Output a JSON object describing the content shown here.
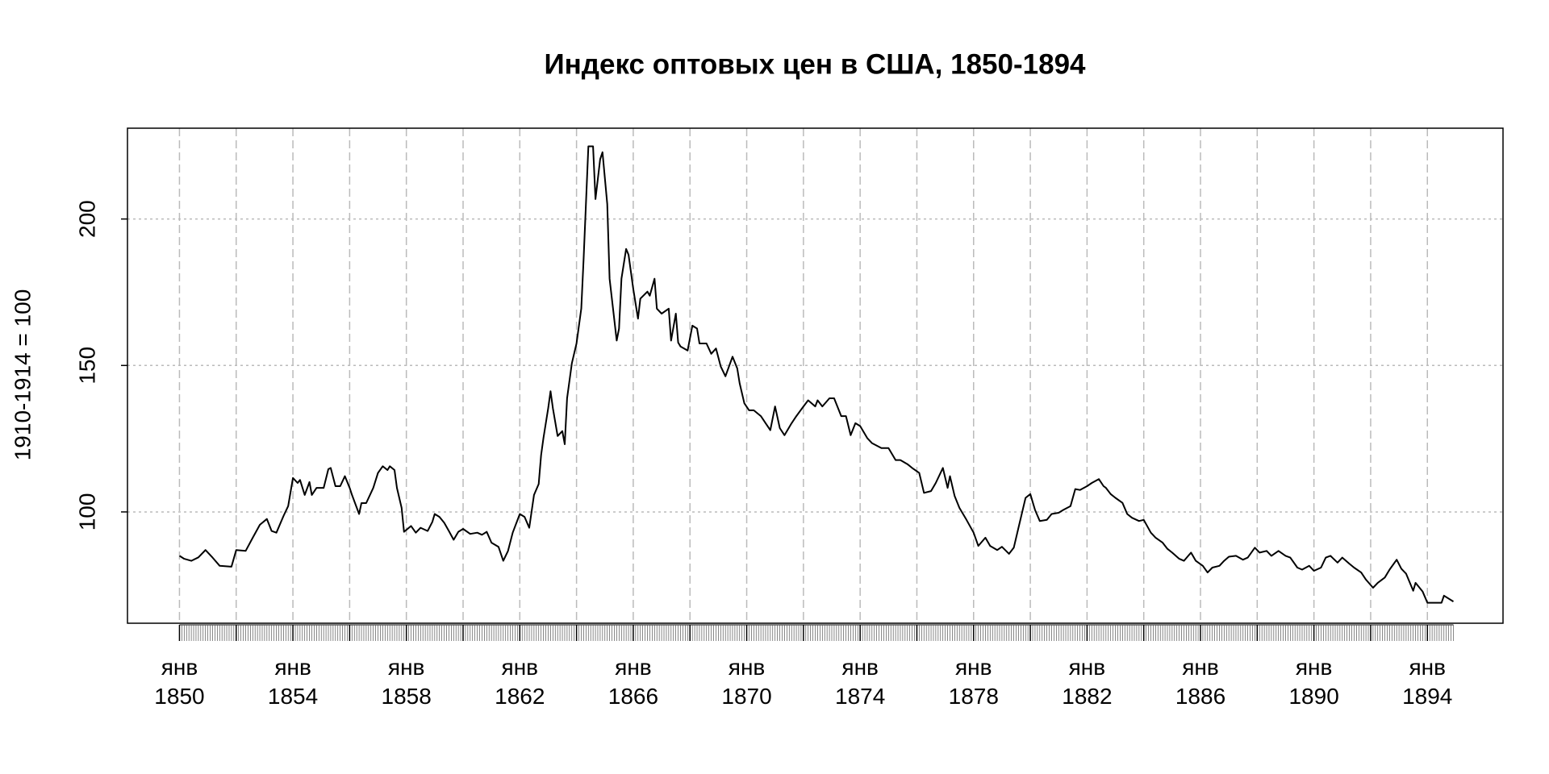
{
  "chart_data": {
    "type": "line",
    "title": "Индекс оптовых цен в США, 1850-1894",
    "y_label": "1910-1914 = 100",
    "color": "#000000",
    "x": [
      "1850-01",
      "1850-03",
      "1850-06",
      "1850-09",
      "1850-12",
      "1851-03",
      "1851-06",
      "1851-11",
      "1852-01",
      "1852-05",
      "1852-08",
      "1852-11",
      "1853-02",
      "1853-04",
      "1853-06",
      "1853-09",
      "1853-11",
      "1854-01",
      "1854-03",
      "1854-04",
      "1854-06",
      "1854-08",
      "1854-09",
      "1854-11",
      "1855-02",
      "1855-04",
      "1855-05",
      "1855-07",
      "1855-09",
      "1855-11",
      "1856-01",
      "1856-02",
      "1856-05",
      "1856-06",
      "1856-08",
      "1856-11",
      "1857-01",
      "1857-03",
      "1857-05",
      "1857-06",
      "1857-08",
      "1857-09",
      "1857-11",
      "1857-12",
      "1858-03",
      "1858-05",
      "1858-07",
      "1858-10",
      "1858-12",
      "1859-01",
      "1859-03",
      "1859-05",
      "1859-07",
      "1859-09",
      "1859-11",
      "1860-01",
      "1860-04",
      "1860-07",
      "1860-09",
      "1860-11",
      "1861-01",
      "1861-04",
      "1861-06",
      "1861-08",
      "1861-10",
      "1862-01",
      "1862-03",
      "1862-05",
      "1862-07",
      "1862-09",
      "1862-10",
      "1862-11",
      "1863-01",
      "1863-02",
      "1863-03",
      "1863-05",
      "1863-07",
      "1863-08",
      "1863-09",
      "1863-11",
      "1864-01",
      "1864-03",
      "1864-04",
      "1864-06",
      "1864-08",
      "1864-09",
      "1864-11",
      "1864-12",
      "1865-02",
      "1865-03",
      "1865-06",
      "1865-07",
      "1865-08",
      "1865-10",
      "1865-11",
      "1866-01",
      "1866-03",
      "1866-04",
      "1866-07",
      "1866-08",
      "1866-10",
      "1866-11",
      "1867-01",
      "1867-04",
      "1867-05",
      "1867-07",
      "1867-08",
      "1867-09",
      "1867-12",
      "1868-02",
      "1868-04",
      "1868-05",
      "1868-08",
      "1868-10",
      "1868-12",
      "1869-02",
      "1869-04",
      "1869-07",
      "1869-09",
      "1869-10",
      "1869-12",
      "1870-02",
      "1870-04",
      "1870-07",
      "1870-09",
      "1870-11",
      "1871-01",
      "1871-03",
      "1871-05",
      "1871-08",
      "1871-10",
      "1872-01",
      "1872-03",
      "1872-06",
      "1872-07",
      "1872-09",
      "1872-12",
      "1873-02",
      "1873-05",
      "1873-07",
      "1873-09",
      "1873-11",
      "1874-01",
      "1874-04",
      "1874-06",
      "1874-10",
      "1875-01",
      "1875-04",
      "1875-06",
      "1875-09",
      "1875-11",
      "1876-02",
      "1876-04",
      "1876-07",
      "1876-09",
      "1876-12",
      "1877-02",
      "1877-03",
      "1877-05",
      "1877-07",
      "1877-10",
      "1878-01",
      "1878-03",
      "1878-06",
      "1878-08",
      "1878-11",
      "1879-01",
      "1879-04",
      "1879-06",
      "1879-08",
      "1879-11",
      "1880-01",
      "1880-03",
      "1880-05",
      "1880-08",
      "1880-10",
      "1881-01",
      "1881-03",
      "1881-06",
      "1881-08",
      "1881-10",
      "1882-01",
      "1882-03",
      "1882-06",
      "1882-08",
      "1882-09",
      "1882-11",
      "1883-01",
      "1883-04",
      "1883-06",
      "1883-08",
      "1883-11",
      "1884-01",
      "1884-04",
      "1884-06",
      "1884-09",
      "1884-11",
      "1885-01",
      "1885-04",
      "1885-06",
      "1885-09",
      "1885-11",
      "1886-02",
      "1886-04",
      "1886-06",
      "1886-09",
      "1886-11",
      "1887-01",
      "1887-04",
      "1887-07",
      "1887-09",
      "1887-12",
      "1888-02",
      "1888-05",
      "1888-07",
      "1888-10",
      "1889-01",
      "1889-03",
      "1889-06",
      "1889-08",
      "1889-11",
      "1890-01",
      "1890-04",
      "1890-06",
      "1890-08",
      "1890-11",
      "1891-01",
      "1891-04",
      "1891-06",
      "1891-09",
      "1891-11",
      "1892-02",
      "1892-04",
      "1892-07",
      "1892-09",
      "1892-12",
      "1893-02",
      "1893-04",
      "1893-07",
      "1893-08",
      "1893-11",
      "1894-01",
      "1894-04",
      "1894-07",
      "1894-08",
      "1894-12"
    ],
    "values": [
      85,
      84,
      83.3,
      84.5,
      87,
      84.4,
      81.6,
      81.3,
      87,
      86.7,
      91.2,
      95.6,
      97.6,
      93.5,
      92.9,
      98.6,
      102,
      111.6,
      109.9,
      110.9,
      105.8,
      110.2,
      105.8,
      108.2,
      108.2,
      114.6,
      115,
      108.8,
      108.8,
      112.2,
      108.2,
      105.8,
      99.3,
      103,
      103,
      108.2,
      113.3,
      115.6,
      114.3,
      115.6,
      114.3,
      108.2,
      101.4,
      93.2,
      95.2,
      92.9,
      94.6,
      93.5,
      96.6,
      99.3,
      98.3,
      96.3,
      93.5,
      90.5,
      93.2,
      94.2,
      92.5,
      92.9,
      92.2,
      93.2,
      89.5,
      88.1,
      83.3,
      86.7,
      92.9,
      99.3,
      98.3,
      94.6,
      105.8,
      109.5,
      119.4,
      125.2,
      135.4,
      141.2,
      135.4,
      125.9,
      127.6,
      123.1,
      138.8,
      150.7,
      157.5,
      169.4,
      186.4,
      224.8,
      224.8,
      206.8,
      220.4,
      222.8,
      205.1,
      179.6,
      158.5,
      162.6,
      179.6,
      189.8,
      187.8,
      176.2,
      166,
      172.8,
      175.2,
      173.8,
      179.6,
      169.4,
      167.7,
      169.4,
      158.5,
      167.7,
      157.8,
      156.5,
      155.1,
      163.6,
      162.6,
      157.5,
      157.5,
      154,
      155.8,
      149.7,
      146.3,
      153,
      149,
      143.9,
      137.1,
      134.7,
      134.7,
      132.7,
      130.3,
      127.9,
      136,
      128.6,
      126.2,
      130.3,
      132.7,
      136,
      138.1,
      136,
      138.1,
      136,
      138.8,
      138.8,
      132.7,
      132.7,
      126.2,
      130.3,
      129.3,
      125.2,
      123.5,
      121.8,
      121.8,
      117.7,
      117.7,
      116.3,
      115,
      113.3,
      106.5,
      107.1,
      109.9,
      115,
      108.2,
      112.2,
      105.4,
      101.4,
      97.3,
      92.9,
      88.4,
      91.2,
      88.4,
      87,
      88.1,
      85.7,
      87.8,
      94.6,
      104.8,
      106.1,
      100.7,
      96.9,
      97.3,
      99.3,
      99.7,
      100.7,
      102,
      107.8,
      107.5,
      108.8,
      109.9,
      111.2,
      108.8,
      108.2,
      106.1,
      104.8,
      103.1,
      99.3,
      98,
      96.9,
      97.3,
      92.9,
      91.2,
      89.5,
      87.4,
      86.1,
      84,
      83.3,
      86.1,
      83.3,
      81.6,
      79.3,
      81,
      81.6,
      83.3,
      84.7,
      85,
      83.7,
      84.4,
      87.8,
      86.1,
      86.7,
      85,
      86.7,
      85,
      84.4,
      81,
      80.3,
      81.6,
      79.9,
      81,
      84.4,
      85,
      82.7,
      84.4,
      82.3,
      81,
      79.3,
      76.9,
      74.1,
      75.8,
      77.6,
      80.3,
      83.7,
      80.6,
      78.9,
      73.1,
      75.8,
      72.8,
      69,
      69,
      69,
      71.4,
      69.4
    ],
    "xlim": [
      "1848-03",
      "1896-09"
    ],
    "ylim": [
      62,
      231
    ],
    "yticks": [
      100,
      150,
      200
    ],
    "xticks": [
      {
        "value": "1850-01",
        "label": "янв 1850"
      },
      {
        "value": "1854-01",
        "label": "янв 1854"
      },
      {
        "value": "1858-01",
        "label": "янв 1858"
      },
      {
        "value": "1862-01",
        "label": "янв 1862"
      },
      {
        "value": "1866-01",
        "label": "янв 1866"
      },
      {
        "value": "1870-01",
        "label": "янв 1870"
      },
      {
        "value": "1874-01",
        "label": "янв 1874"
      },
      {
        "value": "1878-01",
        "label": "янв 1878"
      },
      {
        "value": "1882-01",
        "label": "янв 1882"
      },
      {
        "value": "1886-01",
        "label": "янв 1886"
      },
      {
        "value": "1890-01",
        "label": "янв 1890"
      },
      {
        "value": "1894-01",
        "label": "янв 1894"
      }
    ],
    "xgrid": [
      "1850-01",
      "1852-01",
      "1854-01",
      "1856-01",
      "1858-01",
      "1860-01",
      "1862-01",
      "1864-01",
      "1866-01",
      "1868-01",
      "1870-01",
      "1872-01",
      "1874-01",
      "1876-01",
      "1878-01",
      "1880-01",
      "1882-01",
      "1884-01",
      "1886-01",
      "1888-01",
      "1890-01",
      "1892-01",
      "1894-01"
    ],
    "minor_ticks": "month",
    "grid": true
  }
}
